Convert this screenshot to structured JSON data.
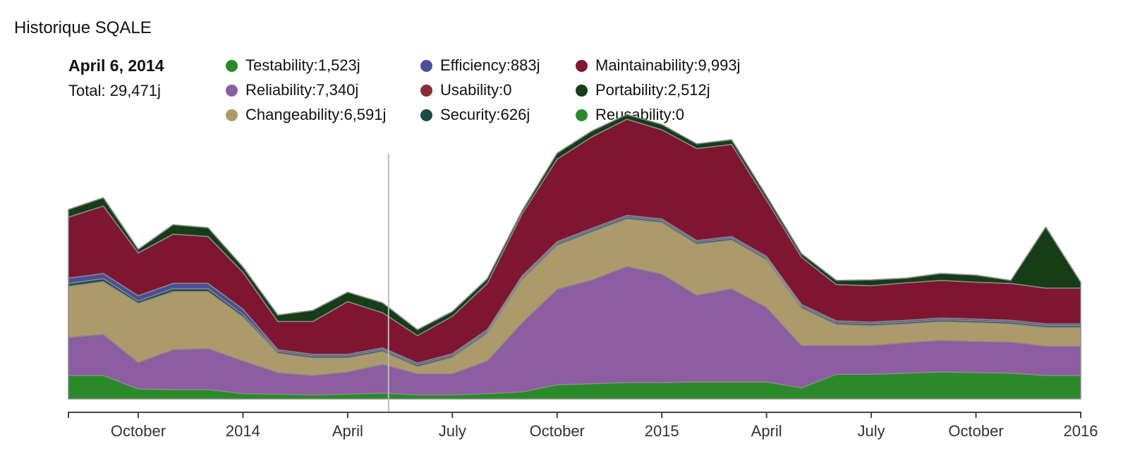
{
  "widget": {
    "title": "Historique SQALE",
    "selected_date": "April 6, 2014",
    "total_label": "Total:",
    "total_value": "29,471j"
  },
  "legend": [
    {
      "name": "Testability",
      "value": "1,523j",
      "color": "#2a8a2a"
    },
    {
      "name": "Efficiency",
      "value": "883j",
      "color": "#4b4f9a"
    },
    {
      "name": "Maintainability",
      "value": "9,993j",
      "color": "#7e1632"
    },
    {
      "name": "Reliability",
      "value": "7,340j",
      "color": "#8c5da0"
    },
    {
      "name": "Usability",
      "value": "0",
      "color": "#8b2e33"
    },
    {
      "name": "Portability",
      "value": "2,512j",
      "color": "#163d16"
    },
    {
      "name": "Changeability",
      "value": "6,591j",
      "color": "#ad9a6b"
    },
    {
      "name": "Security",
      "value": "626j",
      "color": "#1d4a48"
    },
    {
      "name": "Reusability",
      "value": "0",
      "color": "#2a8a2a"
    }
  ],
  "chart_data": {
    "type": "area",
    "stacked": true,
    "title": "Historique SQALE",
    "xlabel": "",
    "ylabel": "",
    "value_unit": "j",
    "xlim": [
      "2013-08",
      "2016-01"
    ],
    "ylim": [
      0,
      50000
    ],
    "selected_index": 9,
    "x": [
      "2013-08",
      "2013-09",
      "2013-10",
      "2013-11",
      "2013-12",
      "2014-01",
      "2014-02",
      "2014-03",
      "2014-04",
      "2014-05",
      "2014-06",
      "2014-07",
      "2014-08",
      "2014-09",
      "2014-10",
      "2014-11",
      "2014-12",
      "2015-01",
      "2015-02",
      "2015-03",
      "2015-04",
      "2015-05",
      "2015-06",
      "2015-07",
      "2015-08",
      "2015-09",
      "2015-10",
      "2015-11",
      "2015-12",
      "2016-01"
    ],
    "x_tick_labels": [
      {
        "at": "2013-10",
        "label": "October"
      },
      {
        "at": "2014-01",
        "label": "2014"
      },
      {
        "at": "2014-04",
        "label": "April"
      },
      {
        "at": "2014-07",
        "label": "July"
      },
      {
        "at": "2014-10",
        "label": "October"
      },
      {
        "at": "2015-01",
        "label": "2015"
      },
      {
        "at": "2015-04",
        "label": "April"
      },
      {
        "at": "2015-07",
        "label": "July"
      },
      {
        "at": "2015-10",
        "label": "October"
      },
      {
        "at": "2016-01",
        "label": "2016"
      }
    ],
    "series": [
      {
        "name": "Testability",
        "color": "#2a8a2a",
        "values": [
          4000,
          4000,
          1700,
          1600,
          1600,
          900,
          800,
          700,
          800,
          1000,
          700,
          700,
          900,
          1200,
          2400,
          2600,
          2800,
          2800,
          2900,
          2900,
          2900,
          1900,
          4200,
          4200,
          4400,
          4600,
          4500,
          4400,
          4000,
          4000
        ]
      },
      {
        "name": "Reliability",
        "color": "#8c5da0",
        "values": [
          6500,
          7000,
          4500,
          6800,
          7000,
          5600,
          3700,
          3300,
          3800,
          4900,
          3600,
          3600,
          5600,
          11800,
          16300,
          17700,
          19800,
          18500,
          14800,
          15900,
          12700,
          7200,
          4900,
          4900,
          5200,
          5400,
          5300,
          5300,
          5000,
          5000
        ]
      },
      {
        "name": "Changeability",
        "color": "#ad9a6b",
        "values": [
          8700,
          9000,
          10100,
          9900,
          9700,
          7500,
          3300,
          3000,
          2400,
          2200,
          1200,
          2800,
          4700,
          7400,
          7500,
          8200,
          8100,
          8800,
          8700,
          8300,
          8100,
          6400,
          3600,
          3400,
          3200,
          3200,
          3200,
          3100,
          3200,
          3200
        ]
      },
      {
        "name": "Security",
        "color": "#1d4a48",
        "values": [
          500,
          500,
          400,
          500,
          500,
          400,
          300,
          300,
          300,
          300,
          300,
          300,
          300,
          300,
          300,
          300,
          300,
          300,
          300,
          300,
          300,
          300,
          300,
          300,
          300,
          300,
          300,
          300,
          300,
          300
        ]
      },
      {
        "name": "Efficiency",
        "color": "#4b4f9a",
        "values": [
          900,
          900,
          900,
          900,
          900,
          900,
          300,
          300,
          300,
          300,
          300,
          300,
          300,
          300,
          300,
          300,
          300,
          300,
          300,
          300,
          300,
          300,
          300,
          300,
          300,
          300,
          300,
          300,
          300,
          300
        ]
      },
      {
        "name": "Maintainability",
        "color": "#7e1632",
        "values": [
          10400,
          11500,
          7300,
          8400,
          8000,
          6300,
          4800,
          5600,
          9000,
          6000,
          4700,
          6400,
          7900,
          10600,
          14100,
          15600,
          16400,
          15200,
          15700,
          15700,
          9600,
          8100,
          6200,
          6200,
          6400,
          6400,
          6300,
          6300,
          6100,
          6100
        ]
      },
      {
        "name": "Usability",
        "color": "#8b2e33",
        "values": [
          0,
          0,
          0,
          0,
          0,
          0,
          0,
          0,
          0,
          0,
          0,
          0,
          0,
          0,
          0,
          0,
          0,
          0,
          0,
          0,
          0,
          0,
          0,
          0,
          0,
          0,
          0,
          0,
          0,
          0
        ]
      },
      {
        "name": "Portability",
        "color": "#163d16",
        "values": [
          1300,
          1400,
          600,
          1600,
          1500,
          900,
          1100,
          1900,
          1600,
          1700,
          1000,
          800,
          800,
          500,
          1000,
          1000,
          800,
          900,
          800,
          800,
          700,
          600,
          700,
          1000,
          800,
          1200,
          1200,
          500,
          10400,
          1000
        ]
      },
      {
        "name": "Reusability",
        "color": "#2a8a2a",
        "values": [
          0,
          0,
          0,
          0,
          0,
          0,
          0,
          0,
          0,
          0,
          0,
          0,
          0,
          0,
          0,
          0,
          0,
          0,
          0,
          0,
          0,
          0,
          0,
          0,
          0,
          0,
          0,
          0,
          0,
          0
        ]
      }
    ]
  }
}
